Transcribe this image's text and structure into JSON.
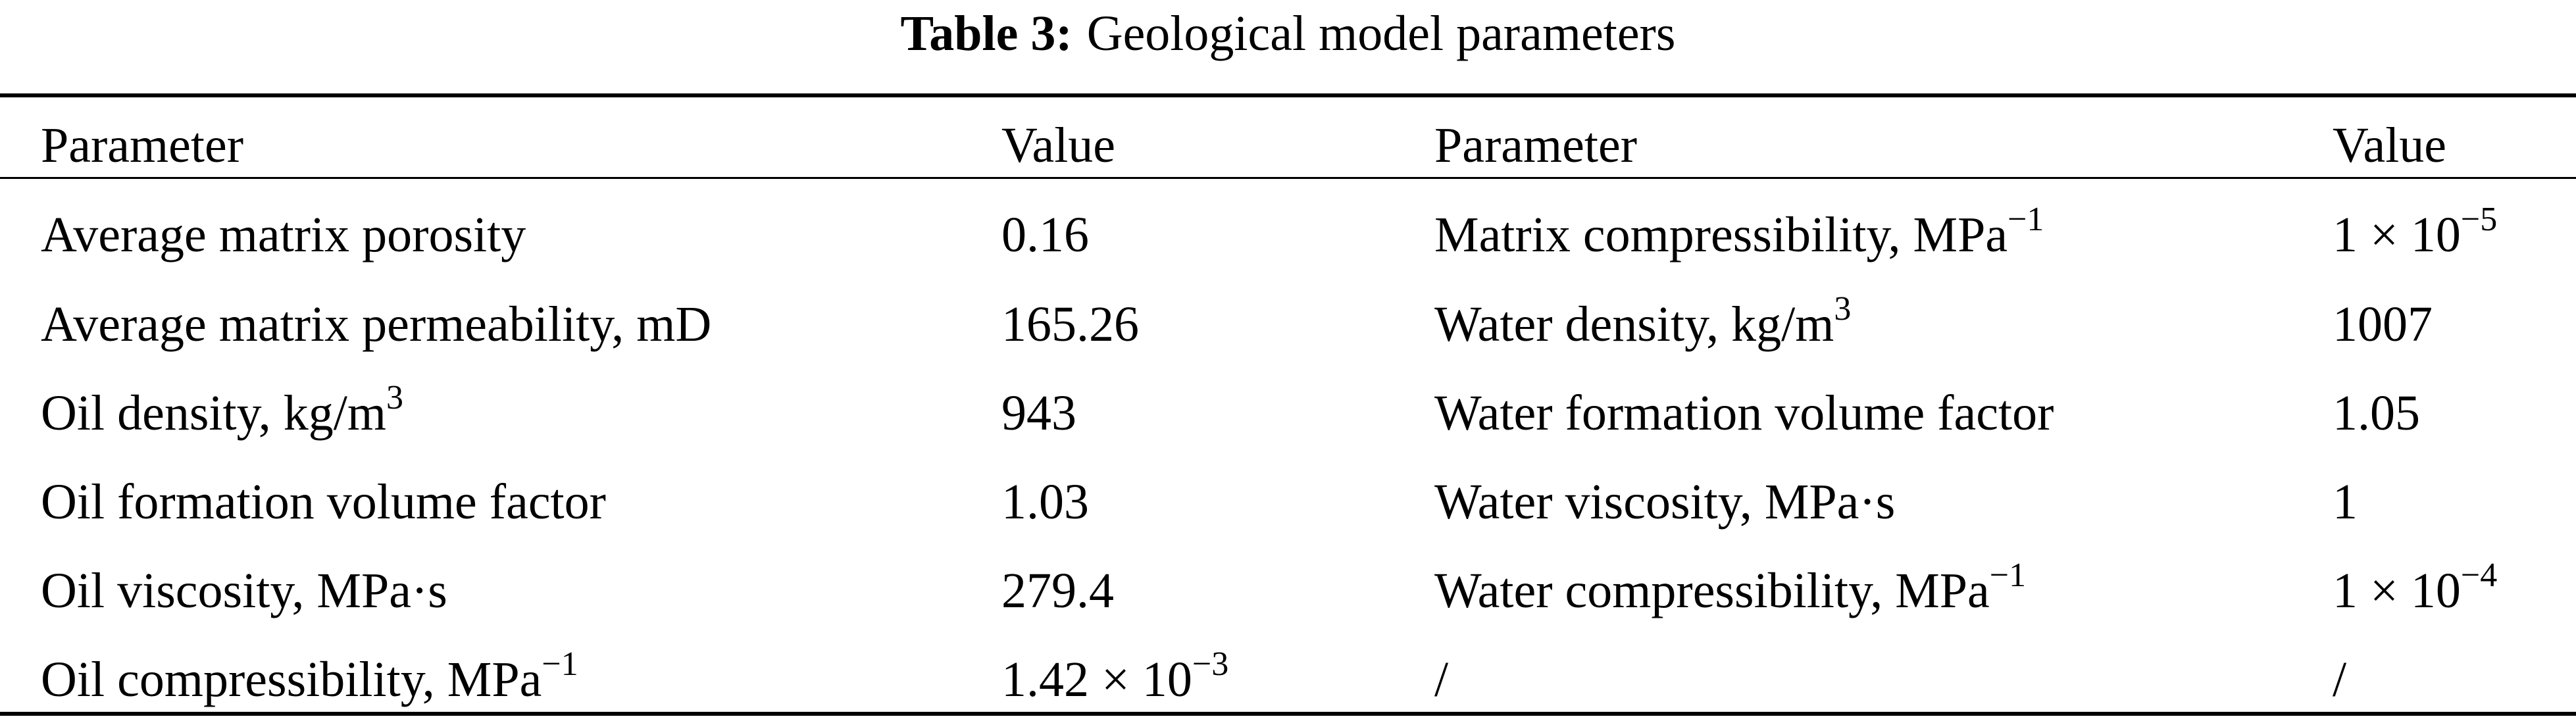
{
  "caption": {
    "label": "Table 3:",
    "title": "Geological model parameters"
  },
  "table": {
    "headers": [
      "Parameter",
      "Value",
      "Parameter",
      "Value"
    ],
    "rows": [
      {
        "param_left": "Average matrix porosity",
        "value_left": "0.16",
        "param_right": "Matrix compressibility, MPa",
        "param_right_sup": "−1",
        "value_right": "1 × 10",
        "value_right_sup": "−5"
      },
      {
        "param_left": "Average matrix permeability, mD",
        "value_left": "165.26",
        "param_right": "Water density, kg/m",
        "param_right_sup": "3",
        "value_right": "1007"
      },
      {
        "param_left": "Oil density, kg/m",
        "param_left_sup": "3",
        "value_left": "943",
        "param_right": "Water formation volume factor",
        "value_right": "1.05"
      },
      {
        "param_left": "Oil formation volume factor",
        "value_left": "1.03",
        "param_right": "Water viscosity, MPa·s",
        "value_right": "1"
      },
      {
        "param_left": "Oil viscosity, MPa·s",
        "value_left": "279.4",
        "param_right": "Water compressibility, MPa",
        "param_right_sup": "−1",
        "value_right": "1 × 10",
        "value_right_sup": "−4"
      },
      {
        "param_left": "Oil compressibility, MPa",
        "param_left_sup": "−1",
        "value_left": "1.42 × 10",
        "value_left_sup": "−3",
        "param_right": "/",
        "value_right": "/"
      }
    ]
  }
}
